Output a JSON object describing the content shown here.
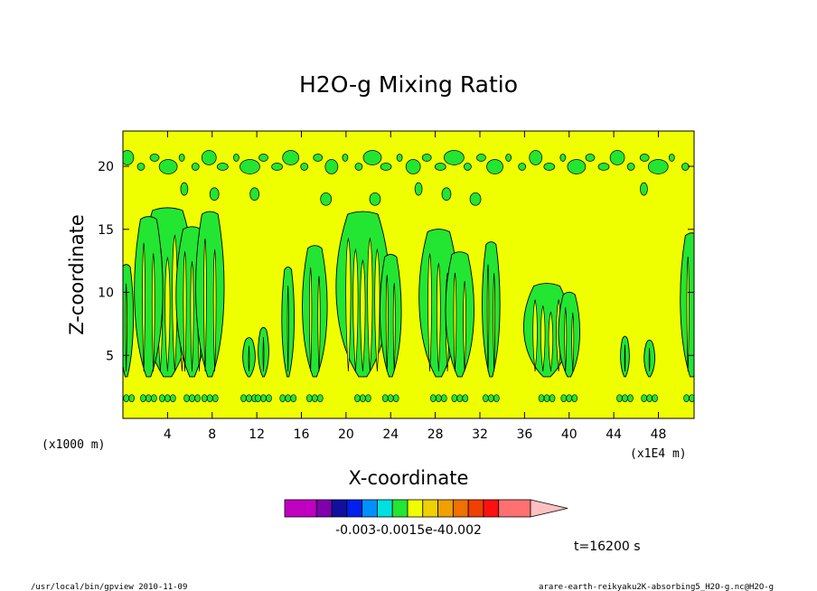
{
  "chart_data": {
    "type": "contour",
    "title": "H2O-g Mixing Ratio",
    "xlabel": "X-coordinate",
    "ylabel": "Z-coordinate",
    "x_unit_left": "(x1000 m)",
    "x_unit_right": "(x1E4 m)",
    "xticks": [
      4,
      8,
      12,
      16,
      20,
      24,
      28,
      32,
      36,
      40,
      44,
      48
    ],
    "yticks": [
      5,
      10,
      15,
      20
    ],
    "xlim": [
      0,
      51.2
    ],
    "ylim": [
      0,
      22.8
    ],
    "background_color": "#f0ff00",
    "fill_color": "#22e632",
    "line_color": "#000000",
    "plumes": [
      {
        "x": 4.0,
        "top": 16.5,
        "width": 3.0
      },
      {
        "x": 2.3,
        "top": 15.8,
        "width": 1.6
      },
      {
        "x": 6.2,
        "top": 15.0,
        "width": 1.8
      },
      {
        "x": 7.8,
        "top": 16.2,
        "width": 1.6
      },
      {
        "x": 0.3,
        "top": 12.0,
        "width": 0.8
      },
      {
        "x": 11.3,
        "top": 6.2,
        "width": 0.7
      },
      {
        "x": 12.6,
        "top": 7.0,
        "width": 0.6
      },
      {
        "x": 14.8,
        "top": 11.8,
        "width": 0.7
      },
      {
        "x": 17.2,
        "top": 13.5,
        "width": 1.4
      },
      {
        "x": 21.5,
        "top": 16.2,
        "width": 3.0
      },
      {
        "x": 24.0,
        "top": 12.8,
        "width": 1.2
      },
      {
        "x": 28.3,
        "top": 14.8,
        "width": 2.2
      },
      {
        "x": 30.2,
        "top": 13.0,
        "width": 1.6
      },
      {
        "x": 33.0,
        "top": 13.8,
        "width": 1.0
      },
      {
        "x": 38.0,
        "top": 10.5,
        "width": 2.6
      },
      {
        "x": 40.0,
        "top": 9.8,
        "width": 1.2
      },
      {
        "x": 45.0,
        "top": 6.3,
        "width": 0.5
      },
      {
        "x": 47.2,
        "top": 6.0,
        "width": 0.6
      },
      {
        "x": 51.0,
        "top": 14.5,
        "width": 1.3
      }
    ],
    "top_band_z": 20.4,
    "colorbar": {
      "colors": [
        "#c000c0",
        "#8000b0",
        "#1010a0",
        "#0020f0",
        "#0090ff",
        "#00e0e0",
        "#22e632",
        "#f0ff00",
        "#f0d000",
        "#f0a000",
        "#f07000",
        "#f04000",
        "#ff1010",
        "#ff7070"
      ],
      "tri_color": "#ffc0c0",
      "labels": "-0.003-0.0015e-40.002"
    }
  },
  "footer": {
    "time": "t=16200 s",
    "left": "/usr/local/bin/gpview   2010-11-09",
    "right": "arare-earth-reikyaku2K-absorbing5_H2O-g.nc@H2O-g"
  }
}
